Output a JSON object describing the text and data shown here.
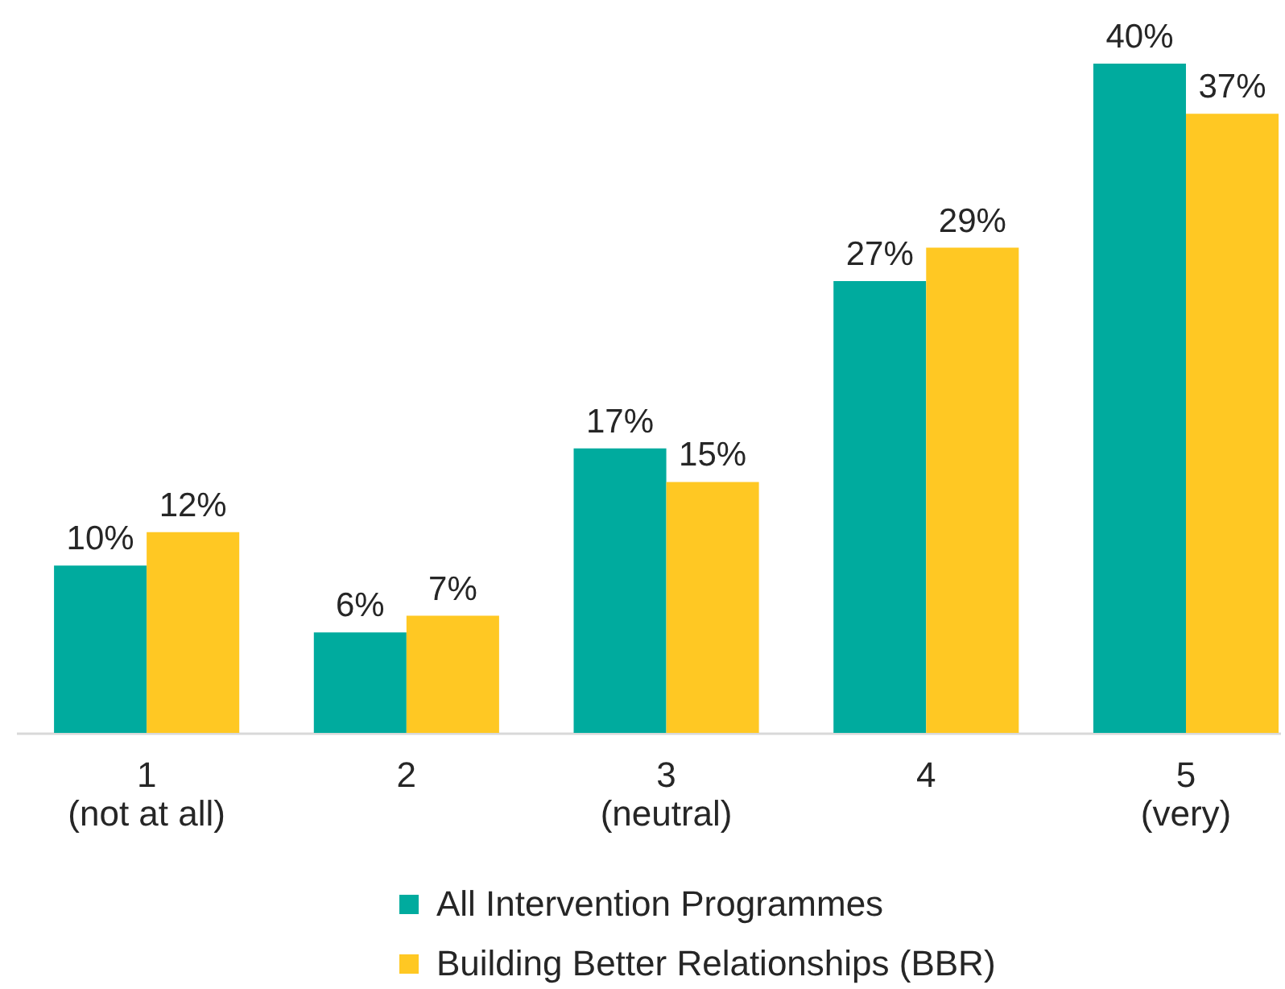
{
  "chart_data": {
    "type": "bar",
    "categories": [
      "1\n(not at all)",
      "2",
      "3\n(neutral)",
      "4",
      "5\n(very)"
    ],
    "series": [
      {
        "name": "All Intervention Programmes",
        "color": "#00ab9e",
        "values": [
          10,
          6,
          17,
          27,
          40
        ],
        "value_labels": [
          "10%",
          "6%",
          "17%",
          "27%",
          "40%"
        ]
      },
      {
        "name": "Building Better Relationships (BBR)",
        "color": "#ffc823",
        "values": [
          12,
          7,
          15,
          29,
          37
        ],
        "value_labels": [
          "12%",
          "7%",
          "15%",
          "29%",
          "37%"
        ]
      }
    ],
    "legend": "bottom"
  }
}
